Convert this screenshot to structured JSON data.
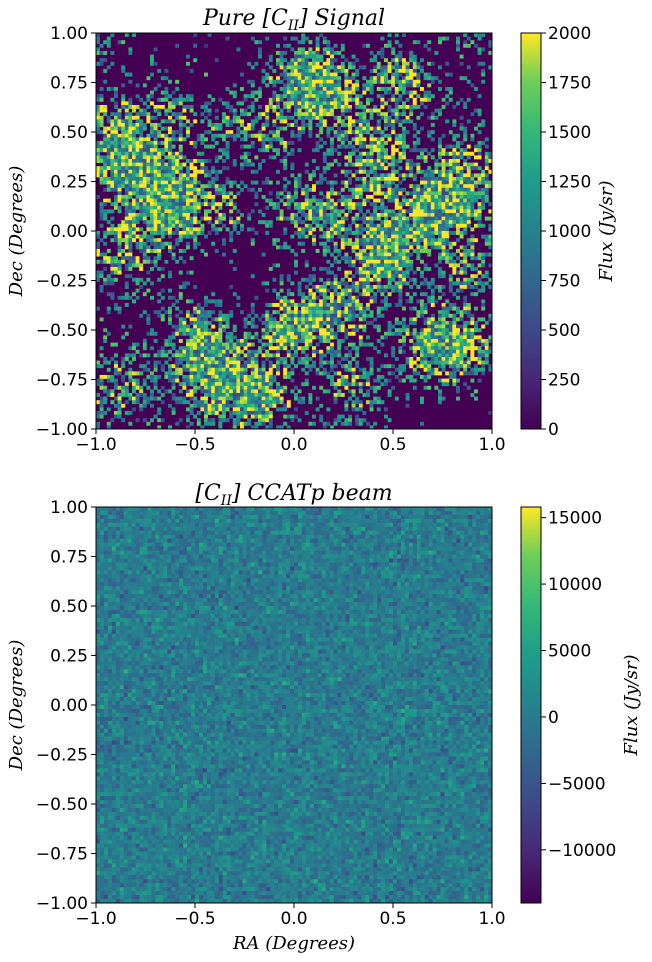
{
  "chart_data": [
    {
      "type": "heatmap",
      "title": {
        "pre": "Pure [C",
        "sub": "II",
        "post": "] Signal"
      },
      "xlabel": "",
      "ylabel": "Dec (Degrees)",
      "xlim": [
        -1.0,
        1.0
      ],
      "ylim": [
        -1.0,
        1.0
      ],
      "xticks": [
        "−1.0",
        "−0.5",
        "0.0",
        "0.5",
        "1.0"
      ],
      "yticks": [
        "−1.00",
        "−0.75",
        "−0.50",
        "−0.25",
        "0.00",
        "0.25",
        "0.50",
        "0.75",
        "1.00"
      ],
      "colorbar": {
        "label": "Flux (Jy/sr)",
        "range": [
          0,
          2000
        ],
        "ticks": [
          0,
          250,
          500,
          750,
          1000,
          1250,
          1500,
          1750,
          2000
        ],
        "tick_labels": [
          "0",
          "250",
          "500",
          "750",
          "1000",
          "1250",
          "1500",
          "1750",
          "2000"
        ],
        "colormap": "viridis"
      },
      "pattern": "sparse filamentary bright clumps on dark background"
    },
    {
      "type": "heatmap",
      "title": {
        "pre": "[C",
        "sub": "II",
        "post": "] CCATp beam"
      },
      "xlabel": "RA (Degrees)",
      "ylabel": "Dec (Degrees)",
      "xlim": [
        -1.0,
        1.0
      ],
      "ylim": [
        -1.0,
        1.0
      ],
      "xticks": [
        "−1.0",
        "−0.5",
        "0.0",
        "0.5",
        "1.0"
      ],
      "yticks": [
        "−1.00",
        "−0.75",
        "−0.50",
        "−0.25",
        "0.00",
        "0.25",
        "0.50",
        "0.75",
        "1.00"
      ],
      "colorbar": {
        "label": "Flux (Jy/sr)",
        "range": [
          -14000,
          15800
        ],
        "ticks": [
          -10000,
          -5000,
          0,
          5000,
          10000,
          15000
        ],
        "tick_labels": [
          "−10000",
          "−5000",
          "0",
          "5000",
          "10000",
          "15000"
        ],
        "colormap": "viridis"
      },
      "pattern": "dense noise-dominated field centered near zero"
    }
  ]
}
